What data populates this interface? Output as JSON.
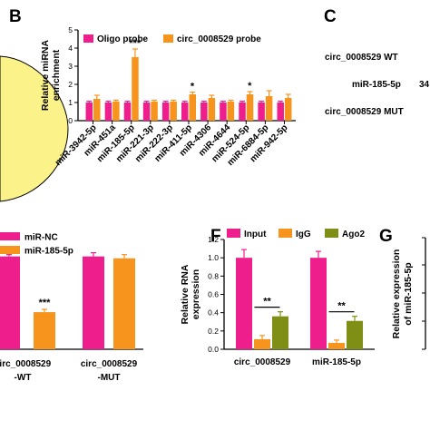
{
  "panels": {
    "B": "B",
    "C": "C",
    "F": "F",
    "G": "G"
  },
  "panel_c_texts": [
    "circ_0008529 WT",
    "miR-185-5p",
    "34",
    "circ_0008529 MUT"
  ],
  "colors": {
    "pink": "#ee1f8c",
    "orange": "#f7941d",
    "olive": "#7f8f16",
    "yellow": "#fbf38a"
  },
  "chart_data": [
    {
      "id": "B",
      "type": "bar",
      "ylabel": "Relative miRNA\nenrichment",
      "ylim": [
        0,
        5
      ],
      "yticks": [
        "0",
        "1",
        "2",
        "3",
        "4",
        "5"
      ],
      "categories": [
        "miR-3942-5p",
        "miR-451a",
        "miR-185-5p",
        "miR-221-3p",
        "miR-222-3p",
        "miR-411-5p",
        "miR-4306",
        "miR-4644",
        "miR-524-5p",
        "miR-6884-5p",
        "miR-942-5p"
      ],
      "series": [
        {
          "name": "Oligo probe",
          "color": "#ee1f8c",
          "values": [
            1.0,
            1.0,
            1.0,
            1.0,
            1.0,
            1.0,
            1.0,
            1.0,
            1.0,
            1.0,
            1.0
          ],
          "errors": [
            0.07,
            0.07,
            0.07,
            0.07,
            0.07,
            0.07,
            0.07,
            0.07,
            0.07,
            0.07,
            0.07
          ]
        },
        {
          "name": "circ_0008529 probe",
          "color": "#f7941d",
          "values": [
            1.2,
            1.05,
            3.5,
            1.05,
            1.05,
            1.45,
            1.25,
            1.05,
            1.45,
            1.35,
            1.25
          ],
          "errors": [
            0.2,
            0.08,
            0.45,
            0.08,
            0.08,
            0.12,
            0.15,
            0.08,
            0.15,
            0.3,
            0.2
          ]
        }
      ],
      "annotations": [
        {
          "category": "miR-185-5p",
          "text": "***"
        },
        {
          "category": "miR-411-5p",
          "text": "*"
        },
        {
          "category": "miR-524-5p",
          "text": "*"
        }
      ]
    },
    {
      "id": "E",
      "type": "bar",
      "categories": [
        "circ_0008529\n-WT",
        "circ_0008529\n-MUT"
      ],
      "series": [
        {
          "name": "miR-NC",
          "color": "#ee1f8c",
          "values": [
            1.0,
            1.0
          ],
          "errors": [
            0.02,
            0.04
          ]
        },
        {
          "name": "miR-185-5p",
          "color": "#f7941d",
          "values": [
            0.4,
            0.98
          ],
          "errors": [
            0.03,
            0.04
          ]
        }
      ],
      "ylim": [
        0,
        1.3
      ],
      "annotations": [
        {
          "category": "circ_0008529\n-WT",
          "text": "***"
        }
      ]
    },
    {
      "id": "F",
      "type": "bar",
      "ylabel": "Relative RNA\nexpression",
      "ylim": [
        0,
        1.2
      ],
      "yticks": [
        "0.0",
        "0.2",
        "0.4",
        "0.6",
        "0.8",
        "1.0",
        "1.2"
      ],
      "categories": [
        "circ_0008529",
        "miR-185-5p"
      ],
      "series": [
        {
          "name": "Input",
          "color": "#ee1f8c",
          "values": [
            1.0,
            1.0
          ],
          "errors": [
            0.09,
            0.07
          ]
        },
        {
          "name": "IgG",
          "color": "#f7941d",
          "values": [
            0.11,
            0.07
          ],
          "errors": [
            0.04,
            0.03
          ]
        },
        {
          "name": "Ago2",
          "color": "#7f8f16",
          "values": [
            0.36,
            0.31
          ],
          "errors": [
            0.05,
            0.05
          ]
        }
      ],
      "annotations": [
        {
          "category": "circ_0008529",
          "text": "**"
        },
        {
          "category": "miR-185-5p",
          "text": "**"
        }
      ]
    },
    {
      "id": "G",
      "type": "bar",
      "ylabel": "Relative expression\nof miR-185-5p",
      "categories": [],
      "series": []
    }
  ]
}
